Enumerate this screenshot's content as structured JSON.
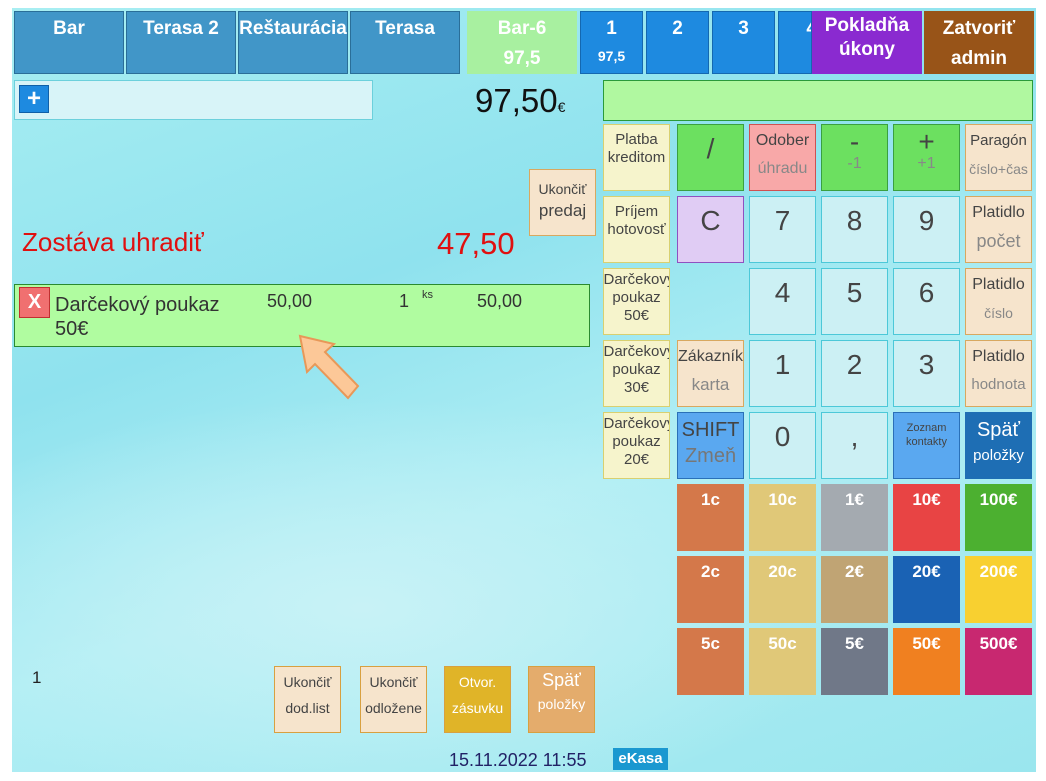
{
  "tabs": [
    {
      "label": "Bar"
    },
    {
      "label": "Terasa 2"
    },
    {
      "label": "Reštaurácia"
    },
    {
      "label": "Terasa"
    }
  ],
  "active_table": {
    "name": "Bar-6",
    "amount": "97,5"
  },
  "number_tabs": [
    {
      "label": "1",
      "amount": "97,5"
    },
    {
      "label": "2"
    },
    {
      "label": "3"
    },
    {
      "label": "4"
    }
  ],
  "pokladna": {
    "line1": "Pokladňa",
    "line2": "úkony"
  },
  "zatvorit": {
    "line1": "Zatvoriť",
    "line2": "admin"
  },
  "search": {
    "plus": "+",
    "value": ""
  },
  "total": {
    "value": "97,50",
    "currency": "€"
  },
  "display": {
    "value": ""
  },
  "remaining": {
    "label": "Zostáva uhradiť",
    "value": "47,50"
  },
  "finish_sale": {
    "line1": "Ukončiť",
    "line2": "predaj"
  },
  "items": [
    {
      "remove": "X",
      "name": "Darčekový poukaz 50€",
      "price": "50,00",
      "qty": "1",
      "unit": "ks",
      "total": "50,00"
    }
  ],
  "side_buttons": [
    {
      "label": "Platba kreditom"
    },
    {
      "label": "Príjem hotovosť"
    },
    {
      "label": "Darčekový poukaz 50€"
    },
    {
      "label": "Darčekový poukaz 30€"
    },
    {
      "label": "Darčekový poukaz 20€"
    }
  ],
  "keypad": {
    "slash": "/",
    "odober": {
      "l1": "Odober",
      "l2": "úhradu"
    },
    "minus": {
      "l1": "-",
      "l2": "-1"
    },
    "plus": {
      "l1": "+",
      "l2": "+1"
    },
    "paragon": {
      "l1": "Paragón",
      "l2": "číslo+čas"
    },
    "clear": "C",
    "digits": [
      "7",
      "8",
      "9",
      "4",
      "5",
      "6",
      "1",
      "2",
      "3",
      "0",
      ","
    ],
    "platidlo_pocet": {
      "l1": "Platidlo",
      "l2": "počet"
    },
    "platidlo_cislo": {
      "l1": "Platidlo",
      "l2": "číslo"
    },
    "platidlo_hodnota": {
      "l1": "Platidlo",
      "l2": "hodnota"
    },
    "zakaznik": {
      "l1": "Zákazník",
      "l2": "karta"
    },
    "shift": {
      "l1": "SHIFT",
      "l2": "Zmeň"
    },
    "zoznam": {
      "l1": "Zoznam",
      "l2": "kontakty"
    },
    "spat": {
      "l1": "Späť",
      "l2": "položky"
    }
  },
  "coins": [
    [
      {
        "label": "1c",
        "color": "#d4784a"
      },
      {
        "label": "10c",
        "color": "#e0c878"
      },
      {
        "label": "1€",
        "color": "#a4aab0"
      },
      {
        "label": "10€",
        "color": "#e84444"
      },
      {
        "label": "100€",
        "color": "#4cb030"
      }
    ],
    [
      {
        "label": "2c",
        "color": "#d4784a"
      },
      {
        "label": "20c",
        "color": "#e0c878"
      },
      {
        "label": "2€",
        "color": "#c0a474"
      },
      {
        "label": "20€",
        "color": "#1a62b4"
      },
      {
        "label": "200€",
        "color": "#f8d030"
      }
    ],
    [
      {
        "label": "5c",
        "color": "#d4784a"
      },
      {
        "label": "50c",
        "color": "#e0c878"
      },
      {
        "label": "5€",
        "color": "#707888"
      },
      {
        "label": "50€",
        "color": "#f08020"
      },
      {
        "label": "500€",
        "color": "#c82870"
      }
    ]
  ],
  "bottom": {
    "page": "1",
    "buttons": [
      {
        "l1": "Ukončiť",
        "l2": "dod.list"
      },
      {
        "l1": "Ukončiť",
        "l2": "odložene"
      },
      {
        "l1": "Otvor.",
        "l2": "zásuvku"
      },
      {
        "l1": "Späť",
        "l2": "položky"
      }
    ],
    "datetime": "15.11.2022 11:55",
    "ekasa": "eKasa"
  }
}
